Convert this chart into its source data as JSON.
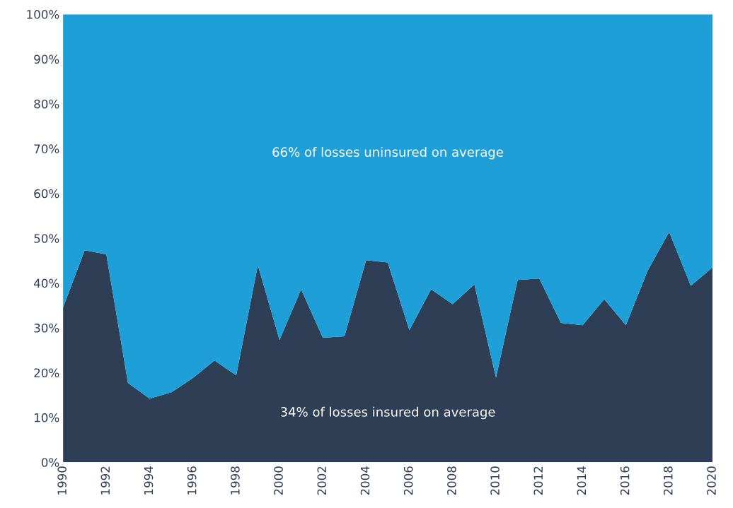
{
  "chart_data": {
    "type": "area",
    "stacked": true,
    "x": [
      1990,
      1991,
      1992,
      1993,
      1994,
      1995,
      1996,
      1997,
      1998,
      1999,
      2000,
      2001,
      2002,
      2003,
      2004,
      2005,
      2006,
      2007,
      2008,
      2009,
      2010,
      2011,
      2012,
      2013,
      2014,
      2015,
      2016,
      2017,
      2018,
      2019,
      2020
    ],
    "series": [
      {
        "color": "#2d3e55",
        "values": [
          34.5,
          47.3,
          46.4,
          17.7,
          14.2,
          15.6,
          18.8,
          22.7,
          19.4,
          44.0,
          27.3,
          38.6,
          27.8,
          28.1,
          45.1,
          44.6,
          29.5,
          38.6,
          35.3,
          39.7,
          18.9,
          40.7,
          41.0,
          31.1,
          30.6,
          36.4,
          30.6,
          42.7,
          51.4,
          39.4,
          43.5
        ]
      },
      {
        "color": "#1e9fd8",
        "values": [
          65.5,
          52.7,
          53.6,
          82.3,
          85.8,
          84.4,
          81.2,
          77.3,
          80.6,
          56.0,
          72.7,
          61.4,
          72.2,
          71.9,
          54.9,
          55.4,
          70.5,
          61.4,
          64.7,
          60.3,
          81.1,
          59.3,
          59.0,
          68.9,
          69.4,
          63.6,
          69.4,
          57.3,
          48.6,
          60.6,
          56.5
        ]
      }
    ],
    "xlim": [
      1990,
      2020
    ],
    "xticks": [
      1990,
      1992,
      1994,
      1996,
      1998,
      2000,
      2002,
      2004,
      2006,
      2008,
      2010,
      2012,
      2014,
      2016,
      2018,
      2020
    ],
    "ylim": [
      0,
      100
    ],
    "yticks": [
      {
        "value": 0,
        "label": "0%"
      },
      {
        "value": 10,
        "label": "10%"
      },
      {
        "value": 20,
        "label": "20%"
      },
      {
        "value": 30,
        "label": "30%"
      },
      {
        "value": 40,
        "label": "40%"
      },
      {
        "value": 50,
        "label": "50%"
      },
      {
        "value": 60,
        "label": "60%"
      },
      {
        "value": 70,
        "label": "70%"
      },
      {
        "value": 80,
        "label": "80%"
      },
      {
        "value": 90,
        "label": "90%"
      },
      {
        "value": 100,
        "label": "100%"
      }
    ],
    "annotations": [
      "66% of losses uninsured on average",
      "34% of losses insured on average"
    ]
  }
}
